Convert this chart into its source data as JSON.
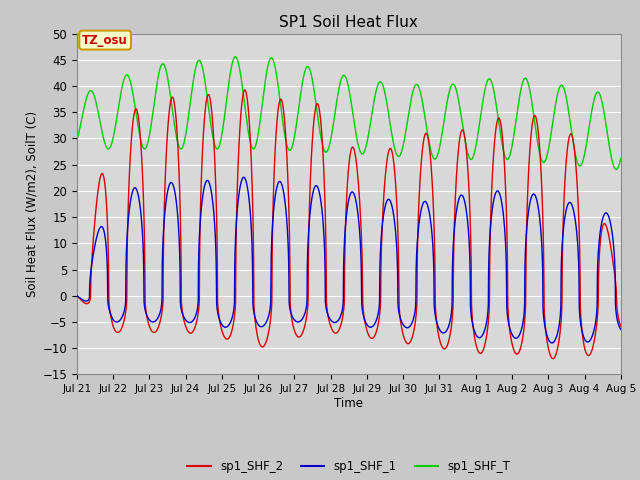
{
  "title": "SP1 Soil Heat Flux",
  "xlabel": "Time",
  "ylabel": "Soil Heat Flux (W/m2), SoilT (C)",
  "ylim": [
    -15,
    50
  ],
  "yticks": [
    -15,
    -10,
    -5,
    0,
    5,
    10,
    15,
    20,
    25,
    30,
    35,
    40,
    45,
    50
  ],
  "xtick_labels": [
    "Jul 21",
    "Jul 22",
    "Jul 23",
    "Jul 24",
    "Jul 25",
    "Jul 26",
    "Jul 27",
    "Jul 28",
    "Jul 29",
    "Jul 30",
    "Jul 31",
    "Aug 1",
    "Aug 2",
    "Aug 3",
    "Aug 4",
    "Aug 5"
  ],
  "tz_label": "TZ_osu",
  "fig_bg": "#d8d8d8",
  "plot_bg": "#d8d8d8",
  "line_colors": {
    "sp1_SHF_2": "#dd0000",
    "sp1_SHF_1": "#0000cc",
    "sp1_SHF_T": "#00cc00"
  },
  "legend_labels": [
    "sp1_SHF_2",
    "sp1_SHF_1",
    "sp1_SHF_T"
  ],
  "n_days": 15
}
